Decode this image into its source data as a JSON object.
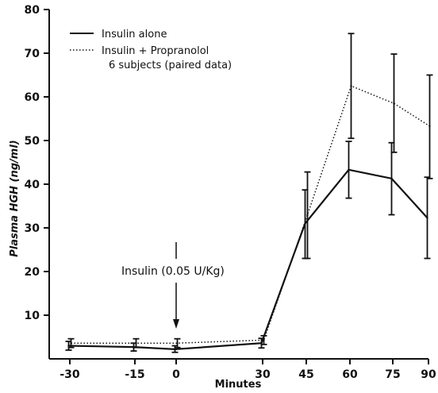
{
  "chart_data": {
    "type": "line",
    "xlabel": "Minutes",
    "ylabel": "Plasma HGH (ng/ml)",
    "x_tick_labels": [
      "-30",
      "-15",
      "0",
      "30",
      "45",
      "60",
      "75",
      "90"
    ],
    "y_tick_labels": [
      "",
      "10",
      "20",
      "30",
      "40",
      "50",
      "60",
      "70",
      "80"
    ],
    "y_ticks": [
      0,
      10,
      20,
      30,
      40,
      50,
      60,
      70,
      80
    ],
    "ylim": [
      0,
      80
    ],
    "x": [
      -30,
      -15,
      0,
      30,
      45,
      60,
      75,
      90
    ],
    "legend": {
      "position": "top-left",
      "note": "6 subjects (paired data)"
    },
    "annotation": {
      "text": "Insulin (0.05 U/Kg)",
      "arrow_at_x": 0
    },
    "grid": false,
    "series": [
      {
        "name": "Insulin alone",
        "style": "solid",
        "color": "#111111",
        "values": [
          3.0,
          2.7,
          2.2,
          3.6,
          31,
          43.3,
          41.3,
          32.3
        ],
        "error_low": [
          2.0,
          1.8,
          1.5,
          2.5,
          23,
          36.8,
          33.0,
          23.0
        ],
        "error_high": [
          4.0,
          3.6,
          3.0,
          4.7,
          38.7,
          49.8,
          49.5,
          41.6
        ]
      },
      {
        "name": "Insulin + Propranolol",
        "style": "dotted",
        "color": "#111111",
        "values": [
          3.6,
          3.6,
          3.6,
          4.3,
          33,
          62.5,
          58.5,
          53.3
        ],
        "error_low": [
          2.6,
          2.6,
          2.6,
          3.3,
          23,
          50.5,
          47.3,
          41.3
        ],
        "error_high": [
          4.6,
          4.6,
          4.6,
          5.3,
          42.8,
          74.5,
          69.8,
          65.0
        ]
      }
    ]
  }
}
